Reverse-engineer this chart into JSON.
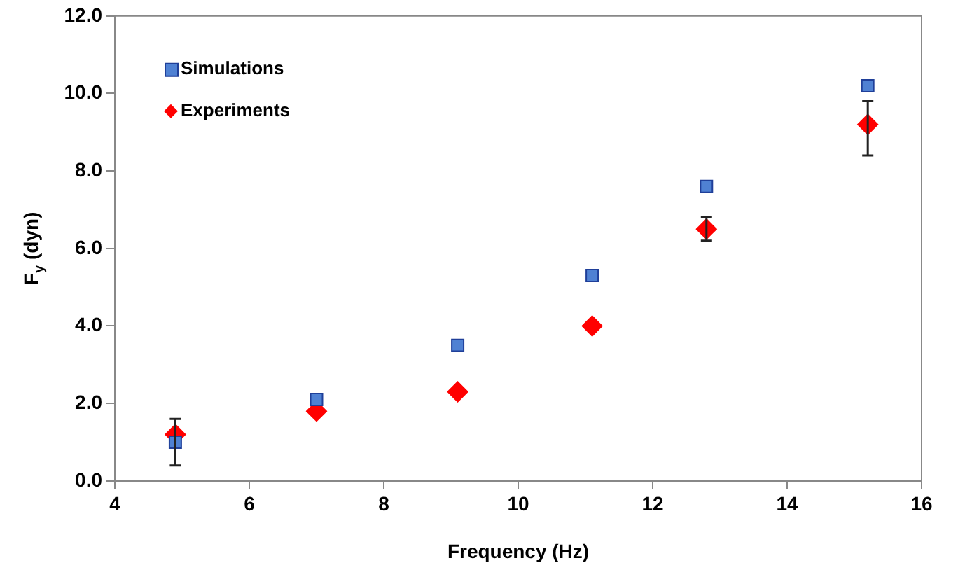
{
  "chart_data": {
    "type": "scatter",
    "xlabel": "Frequency (Hz)",
    "ylabel": "F$_{y}$ (dyn)",
    "xlim": [
      4,
      16
    ],
    "xticks": [
      4,
      6,
      8,
      10,
      12,
      14,
      16
    ],
    "ylim": [
      0,
      12
    ],
    "yticks": [
      {
        "value": 0,
        "label": "0.0"
      },
      {
        "value": 2,
        "label": "2.0"
      },
      {
        "value": 4,
        "label": "4.0"
      },
      {
        "value": 6,
        "label": "6.0"
      },
      {
        "value": 8,
        "label": "8.0"
      },
      {
        "value": 10,
        "label": "10.0"
      },
      {
        "value": 12,
        "label": "12.0"
      }
    ],
    "x": [
      4.9,
      7.0,
      9.1,
      11.1,
      12.8,
      15.2
    ],
    "series": [
      {
        "name": "Simulations",
        "color": "#4f81d3",
        "marker": "square",
        "values": [
          1.0,
          2.1,
          3.5,
          5.3,
          7.6,
          10.2
        ]
      },
      {
        "name": "Experiments",
        "color": "#ff0000",
        "marker": "diamond",
        "values": [
          1.2,
          1.8,
          2.3,
          4.0,
          6.5,
          9.2
        ],
        "errors": [
          [
            0.4,
            1.6
          ],
          null,
          null,
          null,
          [
            6.2,
            6.8
          ],
          [
            8.4,
            9.8
          ]
        ]
      }
    ],
    "legend": "top left",
    "grid": false
  }
}
